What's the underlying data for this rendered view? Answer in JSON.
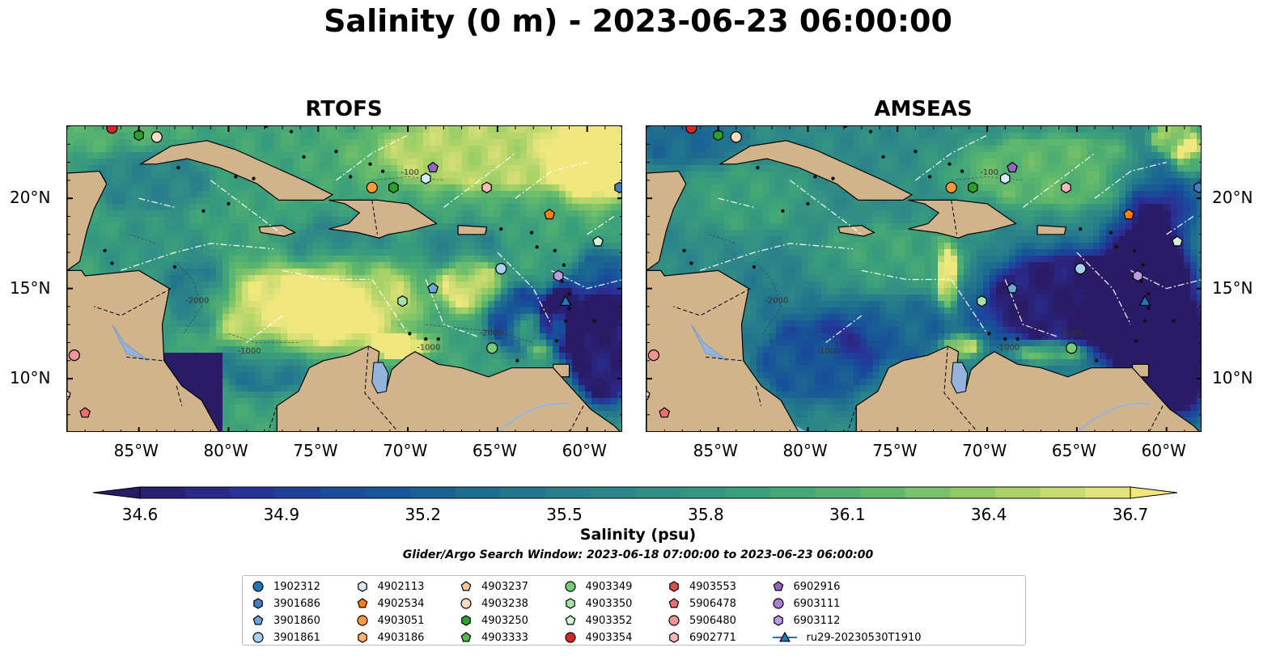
{
  "title": "Salinity (0 m) - 2023-06-23 06:00:00",
  "panels": [
    {
      "title": "RTOFS",
      "model": "rtofs"
    },
    {
      "title": "AMSEAS",
      "model": "amseas"
    }
  ],
  "axes": {
    "lon_range": [
      -89,
      -58
    ],
    "lat_range": [
      7,
      24
    ],
    "x_ticks": [
      "85°W",
      "80°W",
      "75°W",
      "70°W",
      "65°W",
      "60°W"
    ],
    "x_tick_values": [
      -85,
      -80,
      -75,
      -70,
      -65,
      -60
    ],
    "y_ticks": [
      "20°N",
      "15°N",
      "10°N"
    ],
    "y_tick_values": [
      20,
      15,
      10
    ]
  },
  "colorbar": {
    "label": "Salinity (psu)",
    "min": 34.6,
    "max": 36.7,
    "ticks": [
      "34.6",
      "34.9",
      "35.2",
      "35.5",
      "35.8",
      "36.1",
      "36.4",
      "36.7"
    ],
    "extend": "both",
    "colormap": "haline"
  },
  "contour_labels": [
    "-100",
    "-1000",
    "-2000"
  ],
  "search_window": "Glider/Argo Search Window: 2023-06-18 07:00:00 to 2023-06-23 06:00:00",
  "colors": {
    "land": "#d2b48c",
    "lake": "#95b4dd",
    "fresh": "#2b1b66",
    "salty": "#f2e87a"
  },
  "legend": [
    {
      "label": "1902312",
      "marker": "circle",
      "color": "#1f77b4"
    },
    {
      "label": "3901686",
      "marker": "hexagon",
      "color": "#3d7fc0"
    },
    {
      "label": "3901860",
      "marker": "pentagon",
      "color": "#6aa6dc"
    },
    {
      "label": "3901861",
      "marker": "circle",
      "color": "#a9cfee"
    },
    {
      "label": "4902113",
      "marker": "hexagon",
      "color": "#d6ebfb"
    },
    {
      "label": "4902534",
      "marker": "pentagon",
      "color": "#ff7f0e"
    },
    {
      "label": "4903051",
      "marker": "circle",
      "color": "#ff9a3c"
    },
    {
      "label": "4903186",
      "marker": "hexagon",
      "color": "#ffb26a"
    },
    {
      "label": "4903237",
      "marker": "pentagon",
      "color": "#ffc898"
    },
    {
      "label": "4903238",
      "marker": "circle",
      "color": "#ffdcc0"
    },
    {
      "label": "4903250",
      "marker": "hexagon",
      "color": "#2ca02c"
    },
    {
      "label": "4903333",
      "marker": "pentagon",
      "color": "#4fbb4f"
    },
    {
      "label": "4903349",
      "marker": "circle",
      "color": "#78cc78"
    },
    {
      "label": "4903350",
      "marker": "hexagon",
      "color": "#a6e3a6"
    },
    {
      "label": "4903352",
      "marker": "pentagon",
      "color": "#d2f4d2"
    },
    {
      "label": "4903354",
      "marker": "circle",
      "color": "#d62728"
    },
    {
      "label": "4903553",
      "marker": "hexagon",
      "color": "#e04a4a"
    },
    {
      "label": "5906478",
      "marker": "pentagon",
      "color": "#ea7070"
    },
    {
      "label": "5906480",
      "marker": "circle",
      "color": "#f29595"
    },
    {
      "label": "6902771",
      "marker": "hexagon",
      "color": "#f8b9b9"
    },
    {
      "label": "6902916",
      "marker": "pentagon",
      "color": "#9467bd"
    },
    {
      "label": "6903111",
      "marker": "circle",
      "color": "#a77fcc"
    },
    {
      "label": "6903112",
      "marker": "hexagon",
      "color": "#bd9be0"
    },
    {
      "label": "ru29-20230530T1910",
      "marker": "triangle-line",
      "color": "#1f77b4"
    }
  ],
  "floats": [
    {
      "id": "4903354",
      "lon": -86.5,
      "lat": 23.9
    },
    {
      "id": "4903250",
      "lon": -85.0,
      "lat": 23.5
    },
    {
      "id": "4903238",
      "lon": -84.0,
      "lat": 23.4
    },
    {
      "id": "4903051",
      "lon": -72.0,
      "lat": 20.6
    },
    {
      "id": "4903250",
      "lon": -70.8,
      "lat": 20.6
    },
    {
      "id": "4902113",
      "lon": -69.0,
      "lat": 21.1
    },
    {
      "id": "6902916",
      "lon": -68.6,
      "lat": 21.7
    },
    {
      "id": "6902771",
      "lon": -65.6,
      "lat": 20.6
    },
    {
      "id": "4902534",
      "lon": -62.1,
      "lat": 19.1
    },
    {
      "id": "4903352",
      "lon": -59.4,
      "lat": 17.6
    },
    {
      "id": "3901686",
      "lon": -58.2,
      "lat": 20.6
    },
    {
      "id": "3901861",
      "lon": -64.8,
      "lat": 16.1
    },
    {
      "id": "6903112",
      "lon": -61.6,
      "lat": 15.7
    },
    {
      "id": "3901860",
      "lon": -68.6,
      "lat": 15.0
    },
    {
      "id": "4903350",
      "lon": -70.3,
      "lat": 14.3
    },
    {
      "id": "ru29-20230530T1910",
      "lon": -61.2,
      "lat": 14.3
    },
    {
      "id": "4903349",
      "lon": -65.3,
      "lat": 11.7
    },
    {
      "id": "5906480",
      "lon": -88.6,
      "lat": 11.3
    },
    {
      "id": "5906478",
      "lon": -88.0,
      "lat": 8.1
    },
    {
      "id": "4903237",
      "lon": -89.1,
      "lat": 9.1
    }
  ]
}
